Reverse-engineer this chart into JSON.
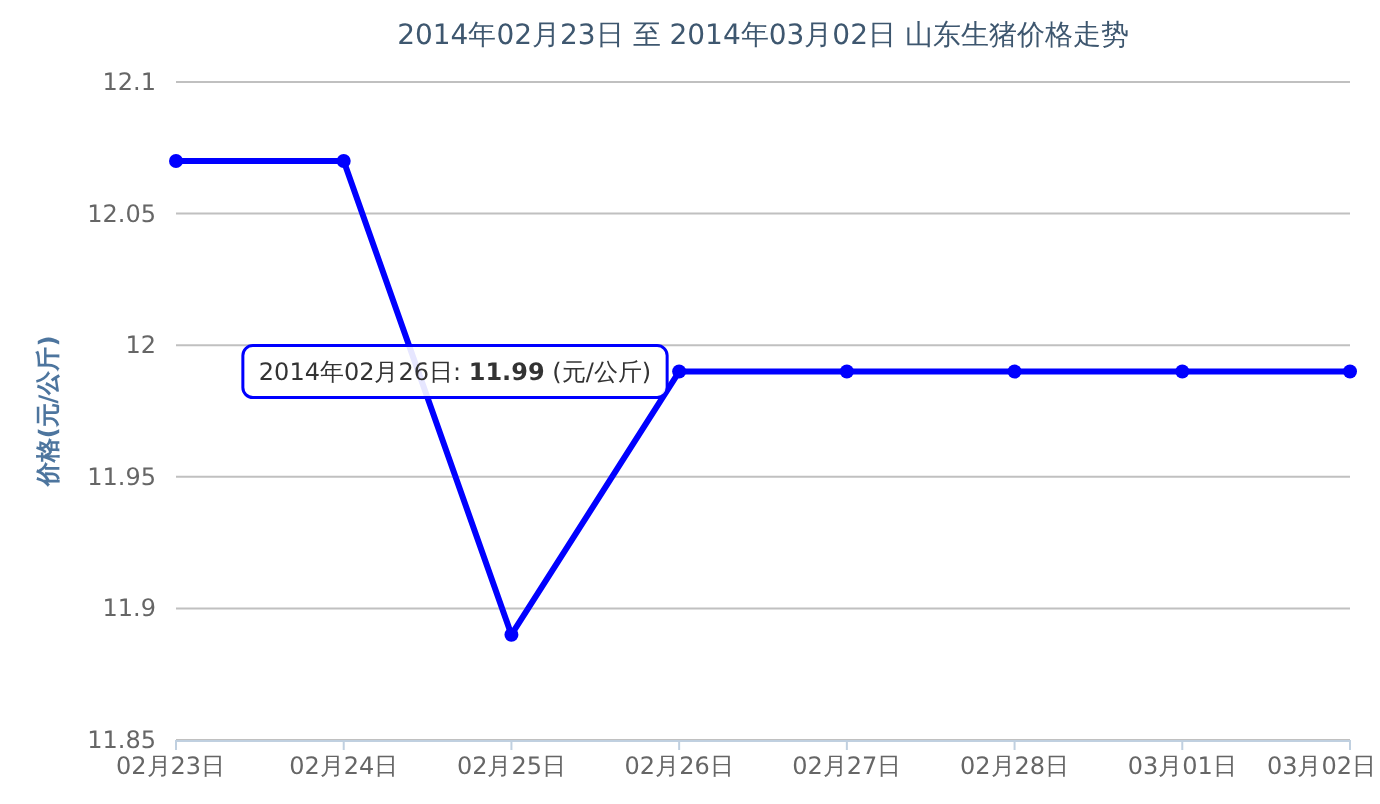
{
  "chart_data": {
    "type": "line",
    "title": "2014年02月23日 至 2014年03月02日 山东生猪价格走势",
    "ylabel": "价格(元/公斤)",
    "categories": [
      "02月23日",
      "02月24日",
      "02月25日",
      "02月26日",
      "02月27日",
      "02月28日",
      "03月01日",
      "03月02日"
    ],
    "series": [
      {
        "color": "#0000ff",
        "values": [
          12.07,
          12.07,
          11.89,
          11.99,
          11.99,
          11.99,
          11.99,
          11.99
        ]
      }
    ],
    "ylim": [
      11.85,
      12.1
    ],
    "yticks": [
      11.85,
      11.9,
      11.95,
      12,
      12.05,
      12.1
    ],
    "grid": "y",
    "marker": "circle",
    "line_style": "solid",
    "annotations": [
      {
        "text": "2014年02月26日: **11.99** (元/公斤)",
        "x": "02月26日",
        "y": 11.99
      }
    ]
  }
}
